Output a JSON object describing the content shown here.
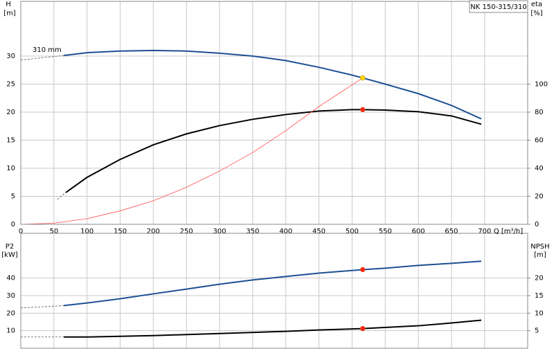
{
  "chart_data": [
    {
      "type": "line",
      "title": "NK 150-315/310",
      "curve_label": "310 mm",
      "ylabel": "H",
      "yunit": "[m]",
      "y2label": "eta",
      "y2unit": "[%]",
      "xlabel": "Q [m³/h]",
      "xlim": [
        0,
        765
      ],
      "xticks": [
        0,
        50,
        100,
        150,
        200,
        250,
        300,
        350,
        400,
        450,
        500,
        550,
        600,
        650,
        700
      ],
      "ylim": [
        0,
        39.75
      ],
      "yticks": [
        0,
        5,
        10,
        15,
        20,
        25,
        30
      ],
      "y2lim": [
        0,
        159
      ],
      "y2ticks": [
        0,
        20,
        40,
        60,
        80,
        100
      ],
      "grid": true,
      "series": [
        {
          "color": "#555555",
          "dashed": true,
          "x": [
            0,
            65
          ],
          "values": [
            29.3,
            30.1
          ]
        },
        {
          "color": "#1c4f94",
          "x": [
            65,
            100,
            150,
            200,
            250,
            300,
            350,
            400,
            450,
            500,
            516,
            550,
            600,
            650,
            695
          ],
          "values": [
            30.1,
            30.6,
            30.9,
            31.0,
            30.9,
            30.5,
            30.0,
            29.2,
            28.0,
            26.6,
            26.1,
            25.0,
            23.3,
            21.2,
            18.8
          ]
        },
        {
          "color": "#555555",
          "dashed": true,
          "axis": "y2",
          "x": [
            55,
            68
          ],
          "values": [
            17.7,
            22.7
          ]
        },
        {
          "color": "#000000",
          "axis": "y2",
          "x": [
            68,
            100,
            150,
            200,
            250,
            300,
            350,
            400,
            450,
            500,
            516,
            550,
            600,
            650,
            695
          ],
          "values": [
            22.7,
            33.5,
            46.3,
            56.7,
            64.5,
            70.4,
            74.9,
            78.3,
            80.8,
            81.8,
            81.8,
            81.5,
            80.3,
            77.3,
            71.4
          ]
        },
        {
          "color": "#ff4d4d",
          "thin": true,
          "x": [
            0,
            50,
            100,
            150,
            200,
            250,
            300,
            350,
            400,
            450,
            516
          ],
          "values": [
            0,
            0.2,
            1.0,
            2.4,
            4.2,
            6.6,
            9.5,
            12.8,
            16.7,
            21.0,
            26.1
          ]
        },
        {
          "type": "scatter",
          "color": "#ffd700",
          "x": [
            516
          ],
          "values": [
            26.1
          ]
        },
        {
          "type": "scatter",
          "color": "#ff2020",
          "axis": "y2",
          "x": [
            516
          ],
          "values": [
            81.8
          ]
        }
      ]
    },
    {
      "type": "line",
      "ylabel": "P2",
      "yunit": "[kW]",
      "y2label": "NPSH",
      "y2unit": "[m]",
      "xlim": [
        0,
        765
      ],
      "ylim": [
        0,
        65.5
      ],
      "yticks": [
        10,
        20,
        30,
        40
      ],
      "y2lim": [
        0,
        32.75
      ],
      "y2ticks": [
        5,
        10,
        15,
        20
      ],
      "grid": true,
      "series": [
        {
          "color": "#555555",
          "dashed": true,
          "x": [
            0,
            65
          ],
          "values": [
            23.0,
            24.3
          ]
        },
        {
          "color": "#1c4f94",
          "x": [
            65,
            100,
            150,
            200,
            250,
            300,
            350,
            400,
            450,
            516,
            550,
            600,
            650,
            695
          ],
          "values": [
            24.3,
            25.8,
            28.2,
            31.0,
            33.7,
            36.5,
            38.9,
            40.9,
            42.8,
            44.8,
            45.6,
            47.2,
            48.4,
            49.6
          ]
        },
        {
          "color": "#555555",
          "dashed": true,
          "axis": "y2",
          "x": [
            0,
            65
          ],
          "values": [
            3.2,
            3.2
          ]
        },
        {
          "color": "#000000",
          "axis": "y2",
          "x": [
            65,
            100,
            200,
            300,
            400,
            450,
            516,
            600,
            650,
            695
          ],
          "values": [
            3.2,
            3.2,
            3.6,
            4.2,
            4.8,
            5.2,
            5.6,
            6.4,
            7.2,
            8.0
          ]
        },
        {
          "type": "scatter",
          "color": "#ff2020",
          "x": [
            516
          ],
          "values": [
            44.8
          ]
        },
        {
          "type": "scatter",
          "color": "#ff2020",
          "axis": "y2",
          "x": [
            516
          ],
          "values": [
            5.6
          ]
        }
      ]
    }
  ]
}
